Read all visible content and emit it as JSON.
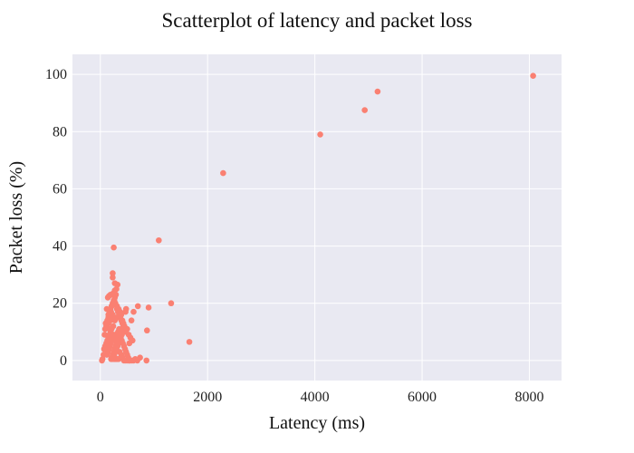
{
  "chart_data": {
    "type": "scatter",
    "title": "Scatterplot of latency and packet loss",
    "xlabel": "Latency (ms)",
    "ylabel": "Packet loss (%)",
    "xlim": [
      -520,
      8600
    ],
    "ylim": [
      -7,
      107
    ],
    "xticks": [
      0,
      2000,
      4000,
      6000,
      8000
    ],
    "yticks": [
      0,
      20,
      40,
      60,
      80,
      100
    ],
    "grid": true,
    "colors": {
      "point": "#fa8072",
      "background": "#e9e9f2",
      "grid": "#ffffff"
    },
    "x": [
      8070,
      5170,
      4930,
      4100,
      2290,
      1090,
      1660,
      1320,
      900,
      870,
      860,
      700,
      620,
      580,
      540,
      480,
      250,
      230,
      230,
      270,
      300,
      320,
      270,
      240,
      190,
      160,
      140,
      120,
      110,
      90,
      80,
      60,
      40,
      30,
      360,
      420,
      470,
      500,
      530,
      560,
      600,
      650,
      690,
      740,
      210,
      200,
      180,
      150,
      130,
      100,
      260,
      280,
      310,
      340,
      370,
      390,
      410,
      430,
      450,
      470,
      350,
      330,
      290,
      250,
      220,
      200,
      180,
      160,
      140,
      120,
      380,
      400,
      420,
      440,
      460,
      480,
      500,
      520,
      540,
      300,
      270,
      240,
      210,
      190,
      170,
      150,
      130,
      110,
      90,
      70,
      360,
      390,
      410,
      440,
      470,
      500,
      530,
      560,
      590,
      620,
      240,
      260,
      280,
      300,
      320,
      340,
      360,
      380,
      400,
      420,
      210,
      230,
      250,
      270,
      290,
      310,
      330,
      350,
      370,
      390,
      150,
      170,
      190,
      210,
      230,
      250,
      270,
      290,
      310,
      330,
      350,
      370,
      390,
      410,
      430,
      450,
      200,
      220,
      240,
      260,
      280,
      300,
      320,
      340,
      130,
      150,
      170,
      190,
      210,
      230,
      250,
      270,
      290,
      310
    ],
    "y": [
      99.5,
      94,
      87.5,
      79,
      65.5,
      42,
      6.5,
      20,
      18.5,
      10.5,
      0,
      19,
      17,
      14,
      6,
      18,
      39.5,
      30.5,
      29,
      27,
      25,
      26.5,
      24.5,
      23.5,
      23,
      22.5,
      22,
      18,
      12,
      11,
      9,
      2,
      0.5,
      0,
      15,
      13,
      17,
      11,
      9,
      8,
      7,
      0.5,
      0,
      1,
      19,
      17,
      16,
      15,
      14,
      13,
      21,
      20,
      19,
      18,
      17,
      16,
      14,
      13,
      12,
      10,
      11,
      10,
      9,
      8,
      7,
      6,
      5,
      4,
      3,
      2,
      8,
      7,
      6,
      5,
      4,
      3,
      2,
      1,
      0,
      15,
      14,
      12,
      11,
      10,
      9,
      8,
      7,
      6,
      5,
      4,
      3,
      2,
      1,
      0,
      0,
      0,
      0,
      0,
      0,
      0,
      1,
      2,
      3,
      4,
      5,
      6,
      7,
      8,
      9,
      10,
      1,
      2,
      3,
      4,
      5,
      6,
      7,
      8,
      9,
      10,
      16,
      17,
      18,
      19,
      20,
      21,
      22,
      23,
      18,
      17,
      16,
      15,
      14,
      13,
      12,
      11,
      0.5,
      0.5,
      0.5,
      0.5,
      0.5,
      0.5,
      0.5,
      0.5,
      12,
      13,
      11,
      14,
      15,
      16,
      9,
      8,
      7,
      6
    ]
  }
}
